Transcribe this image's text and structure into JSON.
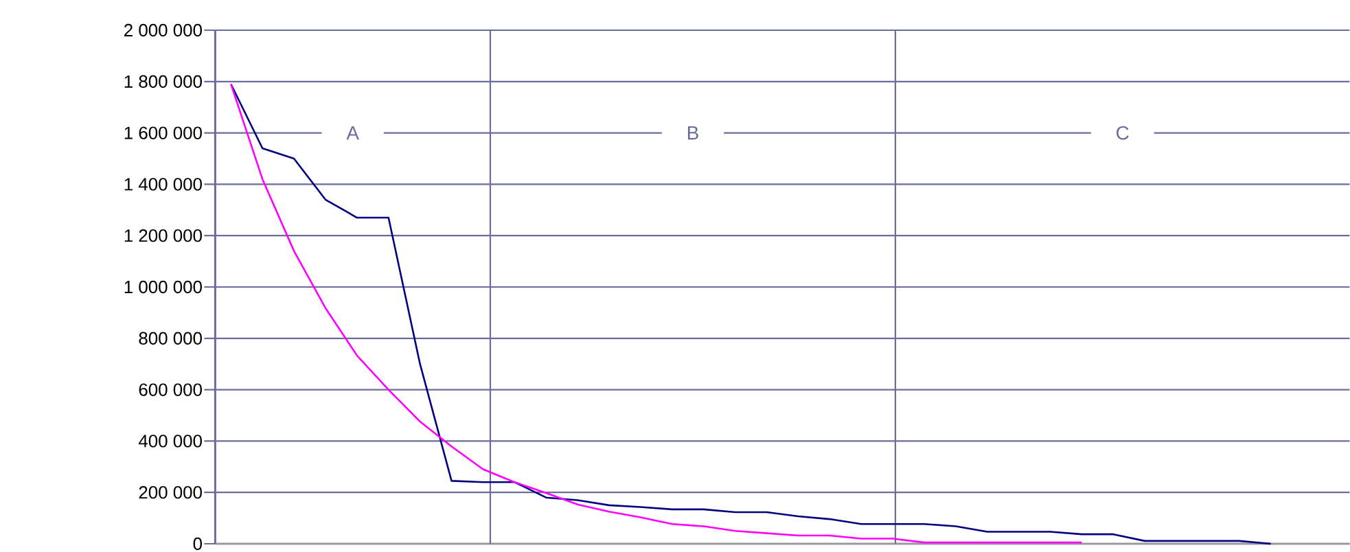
{
  "chart_data": {
    "type": "line",
    "categories": [
      null,
      null,
      null,
      null,
      null,
      null,
      null,
      null,
      null,
      null,
      null,
      null,
      null,
      null,
      null,
      null,
      null,
      null,
      null,
      null,
      null,
      null,
      null,
      null,
      null,
      null,
      null,
      null,
      null,
      null,
      null,
      null,
      null,
      null,
      null,
      null
    ],
    "series": [
      {
        "color": "#000080",
        "values": [
          1790000,
          1540000,
          1500000,
          1340000,
          1270000,
          1270000,
          700000,
          245000,
          240000,
          240000,
          180000,
          170000,
          150000,
          143000,
          134000,
          134000,
          123000,
          123000,
          107000,
          96000,
          77000,
          77000,
          77000,
          68000,
          47000,
          47000,
          47000,
          37000,
          37000,
          11000,
          11000,
          11000,
          11000,
          0,
          null,
          null
        ]
      },
      {
        "color": "#ff00ff",
        "values": [
          1790000,
          1420000,
          1140000,
          918000,
          733000,
          600000,
          476000,
          379000,
          290000,
          240000,
          198000,
          153000,
          125000,
          103000,
          77000,
          68000,
          50000,
          41000,
          32000,
          32000,
          20000,
          20000,
          5000,
          5000,
          5000,
          5000,
          5000,
          5000,
          null,
          null,
          null,
          null,
          null,
          null,
          null,
          null
        ]
      }
    ],
    "ylim": [
      0,
      2000000
    ],
    "yticks": [
      {
        "value": 0,
        "label": "0"
      },
      {
        "value": 200000,
        "label": "200 000"
      },
      {
        "value": 400000,
        "label": "400 000"
      },
      {
        "value": 600000,
        "label": "600 000"
      },
      {
        "value": 800000,
        "label": "800 000"
      },
      {
        "value": 1000000,
        "label": "1 000 000"
      },
      {
        "value": 1200000,
        "label": "1 200 000"
      },
      {
        "value": 1400000,
        "label": "1 400 000"
      },
      {
        "value": 1600000,
        "label": "1 600 000"
      },
      {
        "value": 1800000,
        "label": "1 800 000"
      },
      {
        "value": 2000000,
        "label": "2 000 000"
      }
    ],
    "grid": "y",
    "tick_labels": "y",
    "marker": "none",
    "line_style": "solid",
    "annotations": [
      "A",
      "B",
      "C"
    ]
  }
}
